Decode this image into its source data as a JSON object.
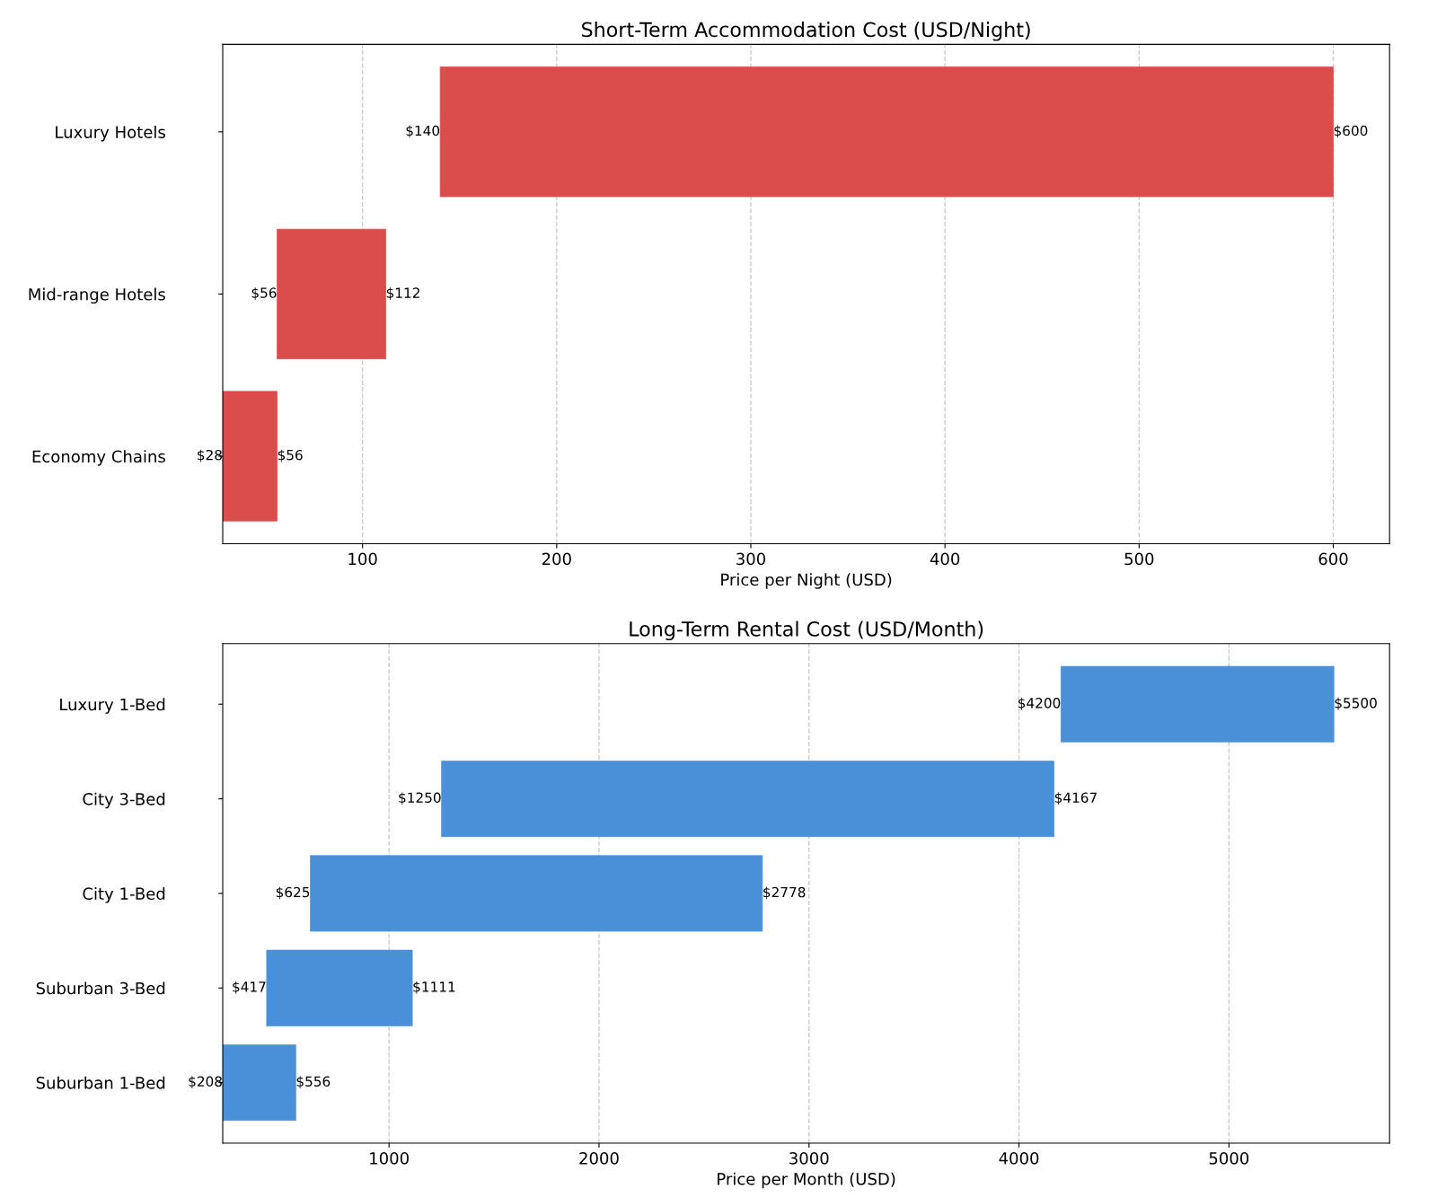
{
  "chart_data": [
    {
      "type": "bar",
      "orientation": "horizontal",
      "title": "Short-Term Accommodation Cost (USD/Night)",
      "xlabel": "Price per Night (USD)",
      "categories": [
        "Luxury Hotels",
        "Mid-range Hotels",
        "Economy Chains"
      ],
      "base": [
        140,
        56,
        28
      ],
      "values": [
        460,
        56,
        28
      ],
      "color": "#db4d4d",
      "xlim": [
        28,
        629
      ],
      "xticks": [
        100,
        200,
        300,
        400,
        500,
        600
      ],
      "grid": "x",
      "legend": false,
      "annotations": [
        {
          "text": "$140",
          "x": 140,
          "y": "Luxury Hotels"
        },
        {
          "text": "$600",
          "x": 600,
          "y": "Luxury Hotels"
        },
        {
          "text": "$56",
          "x": 56,
          "y": "Mid-range Hotels"
        },
        {
          "text": "$112",
          "x": 112,
          "y": "Mid-range Hotels"
        },
        {
          "text": "$28",
          "x": 28,
          "y": "Economy Chains"
        },
        {
          "text": "$56",
          "x": 56,
          "y": "Economy Chains"
        }
      ]
    },
    {
      "type": "bar",
      "orientation": "horizontal",
      "title": "Long-Term Rental Cost (USD/Month)",
      "xlabel": "Price per Month (USD)",
      "categories": [
        "Luxury 1-Bed",
        "City 3-Bed",
        "City 1-Bed",
        "Suburban 3-Bed",
        "Suburban 1-Bed"
      ],
      "base": [
        4200,
        1250,
        625,
        417,
        208
      ],
      "values": [
        1300,
        2917,
        2153,
        694,
        348
      ],
      "color": "#4a90d9",
      "xlim": [
        208,
        5765
      ],
      "xticks": [
        1000,
        2000,
        3000,
        4000,
        5000
      ],
      "grid": "x",
      "legend": false,
      "annotations": [
        {
          "text": "$4200",
          "x": 4200,
          "y": "Luxury 1-Bed"
        },
        {
          "text": "$5500",
          "x": 5500,
          "y": "Luxury 1-Bed"
        },
        {
          "text": "$1250",
          "x": 1250,
          "y": "City 3-Bed"
        },
        {
          "text": "$4167",
          "x": 4167,
          "y": "City 3-Bed"
        },
        {
          "text": "$625",
          "x": 625,
          "y": "City 1-Bed"
        },
        {
          "text": "$2778",
          "x": 2778,
          "y": "City 1-Bed"
        },
        {
          "text": "$417",
          "x": 417,
          "y": "Suburban 3-Bed"
        },
        {
          "text": "$1111",
          "x": 1111,
          "y": "Suburban 3-Bed"
        },
        {
          "text": "$208",
          "x": 208,
          "y": "Suburban 1-Bed"
        },
        {
          "text": "$556",
          "x": 556,
          "y": "Suburban 1-Bed"
        }
      ]
    }
  ]
}
